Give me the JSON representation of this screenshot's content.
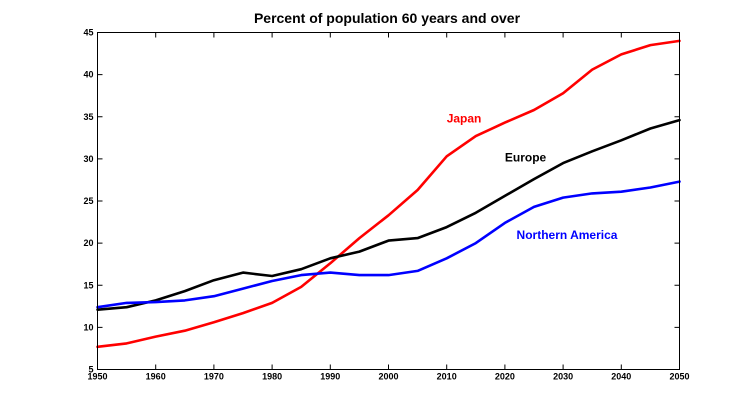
{
  "chart_data": {
    "type": "line",
    "title": "Percent of population 60 years and over",
    "xlabel": "",
    "ylabel": "",
    "xlim": [
      1950,
      2050
    ],
    "ylim": [
      5,
      45
    ],
    "xticks": [
      1950,
      1960,
      1970,
      1980,
      1990,
      2000,
      2010,
      2020,
      2030,
      2040,
      2050
    ],
    "yticks": [
      5,
      10,
      15,
      20,
      25,
      30,
      35,
      40,
      45
    ],
    "grid": false,
    "x": [
      1950,
      1955,
      1960,
      1965,
      1970,
      1975,
      1980,
      1985,
      1990,
      1995,
      2000,
      2005,
      2010,
      2015,
      2020,
      2025,
      2030,
      2035,
      2040,
      2045,
      2050
    ],
    "series": [
      {
        "name": "Japan",
        "color": "#ff0000",
        "label_at": [
          2010,
          34.3
        ],
        "values": [
          7.7,
          8.1,
          8.9,
          9.6,
          10.6,
          11.7,
          12.9,
          14.8,
          17.6,
          20.6,
          23.3,
          26.3,
          30.3,
          32.7,
          34.3,
          35.8,
          37.8,
          40.6,
          42.4,
          43.5,
          44.0
        ]
      },
      {
        "name": "Europe",
        "color": "#000000",
        "label_at": [
          2020,
          29.7
        ],
        "values": [
          12.1,
          12.4,
          13.2,
          14.3,
          15.6,
          16.5,
          16.1,
          16.9,
          18.2,
          19.0,
          20.3,
          20.6,
          21.9,
          23.6,
          25.6,
          27.6,
          29.5,
          30.9,
          32.2,
          33.6,
          34.6
        ]
      },
      {
        "name": "Northern America",
        "color": "#0000ff",
        "label_at": [
          2022,
          20.5
        ],
        "values": [
          12.4,
          12.9,
          13.0,
          13.2,
          13.7,
          14.6,
          15.5,
          16.2,
          16.5,
          16.2,
          16.2,
          16.7,
          18.2,
          20.0,
          22.4,
          24.3,
          25.4,
          25.9,
          26.1,
          26.6,
          27.3
        ]
      }
    ]
  }
}
